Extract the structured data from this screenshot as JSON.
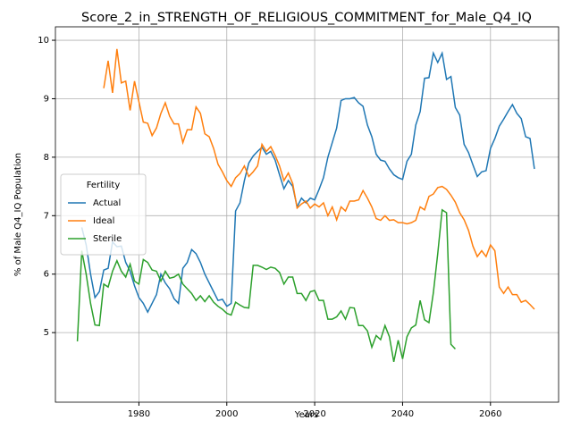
{
  "chart_data": {
    "type": "line",
    "title": "Score_2_in_STRENGTH_OF_RELIGIOUS_COMMITMENT_for_Male_Q4_IQ",
    "xlabel": "Years",
    "ylabel": "% of Male Q4_IQ Population",
    "xlim": [
      1961,
      2075.5
    ],
    "ylim": [
      3.81,
      10.23
    ],
    "xticks": [
      1980,
      2000,
      2020,
      2040,
      2060
    ],
    "yticks": [
      5,
      6,
      7,
      8,
      9,
      10
    ],
    "grid": true,
    "legend_title": "Fertility",
    "legend_position": "center left",
    "x": [
      1966,
      1967,
      1968,
      1969,
      1970,
      1971,
      1972,
      1973,
      1974,
      1975,
      1976,
      1977,
      1978,
      1979,
      1980,
      1981,
      1982,
      1983,
      1984,
      1985,
      1986,
      1987,
      1988,
      1989,
      1990,
      1991,
      1992,
      1993,
      1994,
      1995,
      1996,
      1997,
      1998,
      1999,
      2000,
      2001,
      2002,
      2003,
      2004,
      2005,
      2006,
      2007,
      2008,
      2009,
      2010,
      2011,
      2012,
      2013,
      2014,
      2015,
      2016,
      2017,
      2018,
      2019,
      2020,
      2021,
      2022,
      2023,
      2024,
      2025,
      2026,
      2027,
      2028,
      2029,
      2030,
      2031,
      2032,
      2033,
      2034,
      2035,
      2036,
      2037,
      2038,
      2039,
      2040,
      2041,
      2042,
      2043,
      2044,
      2045,
      2046,
      2047,
      2048,
      2049,
      2050,
      2051,
      2052,
      2053,
      2054,
      2055,
      2056,
      2057,
      2058,
      2059,
      2060,
      2061,
      2062,
      2063,
      2064,
      2065,
      2066,
      2067,
      2068,
      2069,
      2070
    ],
    "series": [
      {
        "name": "Actual",
        "color": "#1f77b4",
        "values": [
          null,
          6.8,
          6.5,
          6.0,
          5.6,
          5.7,
          6.07,
          6.1,
          6.55,
          6.47,
          6.48,
          6.2,
          6.05,
          5.8,
          5.6,
          5.5,
          5.35,
          5.5,
          5.65,
          6.0,
          5.85,
          5.75,
          5.58,
          5.5,
          6.1,
          6.2,
          6.42,
          6.35,
          6.2,
          6.0,
          5.85,
          5.7,
          5.55,
          5.57,
          5.45,
          5.5,
          7.08,
          7.22,
          7.6,
          7.9,
          8.02,
          8.1,
          8.17,
          8.05,
          8.1,
          7.95,
          7.7,
          7.46,
          7.6,
          7.5,
          7.15,
          7.3,
          7.22,
          7.3,
          7.27,
          7.45,
          7.65,
          8.0,
          8.25,
          8.5,
          8.97,
          9.0,
          9.0,
          9.02,
          8.93,
          8.87,
          8.55,
          8.35,
          8.05,
          7.95,
          7.93,
          7.8,
          7.7,
          7.65,
          7.62,
          7.93,
          8.05,
          8.55,
          8.78,
          9.35,
          9.36,
          9.78,
          9.62,
          9.78,
          9.33,
          9.38,
          8.85,
          8.72,
          8.22,
          8.08,
          7.87,
          7.67,
          7.75,
          7.77,
          8.15,
          8.32,
          8.53,
          8.65,
          8.78,
          8.9,
          8.75,
          8.66,
          8.35,
          8.32,
          7.8
        ]
      },
      {
        "name": "Ideal",
        "color": "#ff7f0e",
        "values": [
          null,
          null,
          null,
          null,
          null,
          null,
          9.18,
          9.65,
          9.1,
          9.85,
          9.27,
          9.3,
          8.8,
          9.3,
          8.95,
          8.6,
          8.58,
          8.37,
          8.5,
          8.75,
          8.93,
          8.7,
          8.57,
          8.57,
          8.25,
          8.47,
          8.47,
          8.86,
          8.75,
          8.4,
          8.35,
          8.15,
          7.88,
          7.75,
          7.6,
          7.5,
          7.65,
          7.72,
          7.85,
          7.67,
          7.75,
          7.85,
          8.22,
          8.1,
          8.18,
          8.03,
          7.85,
          7.6,
          7.73,
          7.55,
          7.13,
          7.2,
          7.25,
          7.13,
          7.2,
          7.15,
          7.22,
          7.0,
          7.15,
          6.93,
          7.15,
          7.08,
          7.25,
          7.25,
          7.27,
          7.43,
          7.3,
          7.15,
          6.95,
          6.92,
          7.0,
          6.92,
          6.93,
          6.88,
          6.88,
          6.86,
          6.88,
          6.92,
          7.15,
          7.1,
          7.33,
          7.37,
          7.48,
          7.5,
          7.45,
          7.35,
          7.23,
          7.05,
          6.93,
          6.75,
          6.48,
          6.3,
          6.4,
          6.3,
          6.5,
          6.4,
          5.78,
          5.67,
          5.78,
          5.65,
          5.65,
          5.52,
          5.55,
          5.48,
          5.4
        ]
      },
      {
        "name": "Sterile",
        "color": "#2ca02c",
        "values": [
          4.85,
          6.4,
          6.0,
          5.5,
          5.13,
          5.12,
          5.83,
          5.78,
          6.05,
          6.23,
          6.05,
          5.95,
          6.17,
          5.88,
          5.83,
          6.25,
          6.2,
          6.07,
          6.05,
          5.88,
          6.05,
          5.93,
          5.95,
          6.0,
          5.83,
          5.75,
          5.67,
          5.55,
          5.63,
          5.53,
          5.63,
          5.52,
          5.45,
          5.4,
          5.33,
          5.3,
          5.52,
          5.47,
          5.43,
          5.42,
          6.15,
          6.15,
          6.12,
          6.08,
          6.12,
          6.1,
          6.03,
          5.83,
          5.95,
          5.95,
          5.67,
          5.67,
          5.55,
          5.7,
          5.72,
          5.55,
          5.55,
          5.23,
          5.23,
          5.27,
          5.37,
          5.23,
          5.43,
          5.42,
          5.12,
          5.12,
          5.03,
          4.75,
          4.95,
          4.88,
          5.12,
          4.93,
          4.5,
          4.87,
          4.55,
          4.93,
          5.08,
          5.13,
          5.55,
          5.22,
          5.17,
          5.68,
          6.35,
          7.1,
          7.05,
          4.8,
          4.72,
          null,
          null,
          null,
          null,
          null,
          null,
          null,
          null,
          null,
          null,
          null,
          null,
          null,
          null,
          null,
          null,
          null,
          null
        ]
      }
    ]
  }
}
